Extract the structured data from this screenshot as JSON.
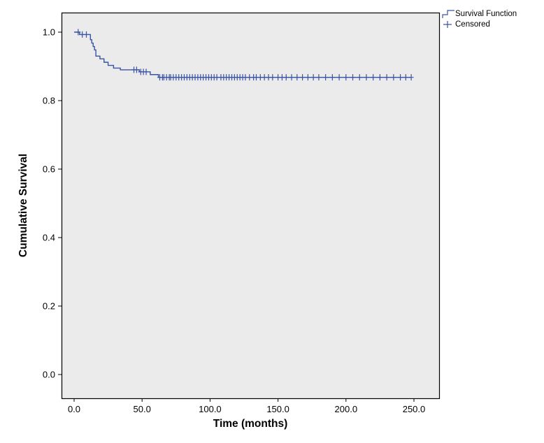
{
  "figure": {
    "background": "#ffffff",
    "panel_background": "#ebebeb",
    "border_color": "#000000",
    "tick_color": "#000000"
  },
  "chart_data": {
    "type": "line",
    "subtype": "kaplan-meier-step",
    "title": "",
    "xlabel": "Time (months)",
    "ylabel": "Cumulative Survival",
    "xlim": [
      0,
      250
    ],
    "ylim": [
      0,
      1.0
    ],
    "x_ticks": [
      0.0,
      50.0,
      100.0,
      150.0,
      200.0,
      250.0
    ],
    "y_ticks": [
      0.0,
      0.2,
      0.4,
      0.6,
      0.8,
      1.0
    ],
    "tick_decimals": 1,
    "grid": false,
    "series_color": "#3b53a4",
    "legend": {
      "position": "top-right",
      "entries": [
        {
          "label": "Survival Function",
          "marker": "step-line"
        },
        {
          "label": "Censored",
          "marker": "plus"
        }
      ]
    },
    "survival_steps": [
      {
        "t": 0,
        "s": 1.0
      },
      {
        "t": 4,
        "s": 0.993
      },
      {
        "t": 12,
        "s": 0.978
      },
      {
        "t": 13,
        "s": 0.968
      },
      {
        "t": 14,
        "s": 0.958
      },
      {
        "t": 15,
        "s": 0.948
      },
      {
        "t": 16,
        "s": 0.93
      },
      {
        "t": 19,
        "s": 0.922
      },
      {
        "t": 22,
        "s": 0.912
      },
      {
        "t": 25,
        "s": 0.903
      },
      {
        "t": 29,
        "s": 0.895
      },
      {
        "t": 34,
        "s": 0.89
      },
      {
        "t": 48,
        "s": 0.884
      },
      {
        "t": 56,
        "s": 0.876
      },
      {
        "t": 62,
        "s": 0.868
      }
    ],
    "end_time": 248,
    "censored_times": [
      3,
      6,
      9,
      44,
      46,
      49,
      51,
      53,
      63,
      65,
      66,
      68,
      70,
      71,
      73,
      75,
      77,
      79,
      81,
      83,
      85,
      87,
      89,
      91,
      93,
      95,
      97,
      99,
      101,
      103,
      105,
      108,
      110,
      112,
      114,
      116,
      118,
      120,
      122,
      124,
      126,
      129,
      132,
      134,
      137,
      140,
      143,
      146,
      150,
      153,
      156,
      160,
      164,
      168,
      172,
      176,
      180,
      185,
      190,
      195,
      200,
      205,
      210,
      215,
      220,
      225,
      230,
      235,
      240,
      244,
      248
    ]
  }
}
